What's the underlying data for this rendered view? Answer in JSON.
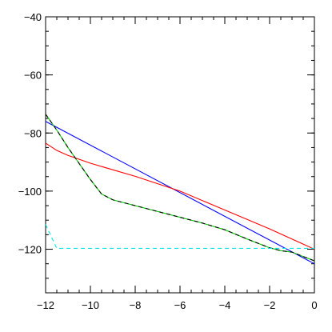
{
  "chart_data": {
    "type": "line",
    "title": "",
    "xlabel": "",
    "ylabel": "",
    "xlim": [
      -12,
      0
    ],
    "ylim": [
      -135,
      -40
    ],
    "grid": false,
    "x_ticks": [
      -12,
      -10,
      -8,
      -6,
      -4,
      -2,
      0
    ],
    "y_ticks": [
      -40,
      -60,
      -80,
      -100,
      -120
    ],
    "x_minor_step": 0.5,
    "y_minor_step": 5,
    "series": [
      {
        "color": "#0000ff",
        "dash": "solid",
        "points": [
          [
            -12,
            -76
          ],
          [
            0,
            -125
          ]
        ]
      },
      {
        "color": "#ff0000",
        "dash": "solid",
        "points": [
          [
            -12,
            -83.5
          ],
          [
            -11.5,
            -86
          ],
          [
            -11,
            -87.7
          ],
          [
            -10,
            -90.4
          ],
          [
            -8,
            -94.9
          ],
          [
            -6,
            -100
          ],
          [
            -4,
            -106.5
          ],
          [
            -2,
            -113
          ],
          [
            0,
            -120
          ]
        ]
      },
      {
        "color": "#00cc00",
        "dash": "solid",
        "points": [
          [
            -12,
            -73.5
          ],
          [
            -11.5,
            -79
          ],
          [
            -11,
            -85
          ],
          [
            -10.5,
            -90.5
          ],
          [
            -10,
            -96
          ],
          [
            -9.5,
            -101
          ],
          [
            -9,
            -103
          ],
          [
            -8.5,
            -104
          ],
          [
            -8,
            -105
          ],
          [
            -7,
            -107
          ],
          [
            -6,
            -109
          ],
          [
            -5,
            -111
          ],
          [
            -4,
            -113.3
          ],
          [
            -3,
            -116.5
          ],
          [
            -2,
            -119.5
          ],
          [
            -1.5,
            -120.5
          ],
          [
            -1,
            -121
          ],
          [
            -0.5,
            -122.5
          ],
          [
            0,
            -124
          ]
        ]
      },
      {
        "color": "#000000",
        "dash": "dashed",
        "points": [
          [
            -12,
            -73.5
          ],
          [
            -11.5,
            -79
          ],
          [
            -11,
            -85
          ],
          [
            -10.5,
            -90.5
          ],
          [
            -10,
            -96
          ],
          [
            -9.5,
            -101
          ],
          [
            -9,
            -103
          ],
          [
            -8.5,
            -104
          ],
          [
            -8,
            -105
          ],
          [
            -7,
            -107
          ],
          [
            -6,
            -109
          ],
          [
            -5,
            -111
          ],
          [
            -4,
            -113.3
          ],
          [
            -3,
            -116.5
          ],
          [
            -2,
            -119.5
          ],
          [
            -1.5,
            -120.5
          ],
          [
            -1,
            -121
          ],
          [
            -0.5,
            -122.5
          ],
          [
            0,
            -124
          ]
        ]
      },
      {
        "color": "#00e5e5",
        "dash": "dashed",
        "points": [
          [
            -12,
            -111.5
          ],
          [
            -11.5,
            -119.7
          ],
          [
            0,
            -119.7
          ]
        ]
      }
    ]
  }
}
